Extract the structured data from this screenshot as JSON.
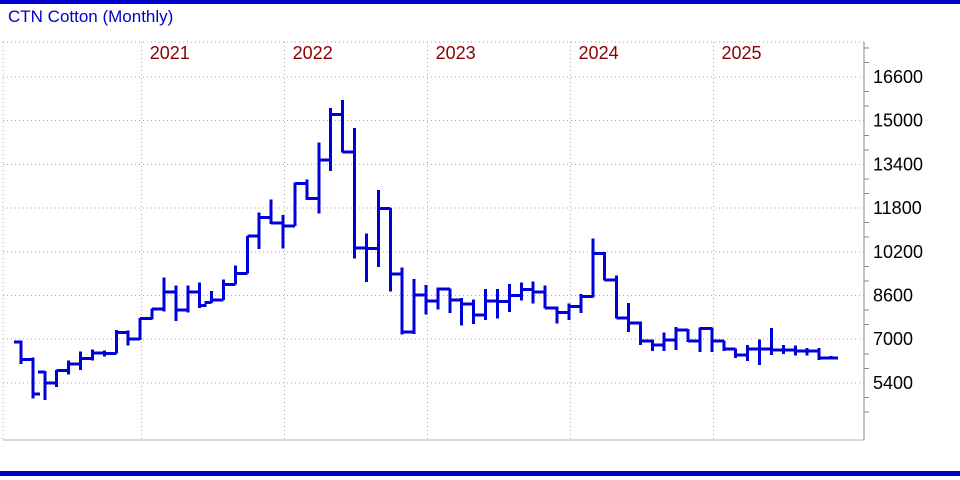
{
  "page": {
    "title": "CTN Cotton (Monthly)"
  },
  "colors": {
    "accent_blue": "#0000cc",
    "bar_blue": "#0000d9",
    "year_label_red": "#8b0000",
    "grid_gray": "#aaaaaa",
    "axis_gray": "#888888",
    "axis_text": "#000000"
  },
  "chart_data": {
    "type": "bar",
    "subtype": "ohlc-bars",
    "title": "CTN Cotton (Monthly)",
    "grid": "dotted",
    "legend": "none",
    "y_axis_side": "right",
    "ylim": [
      3300,
      17900
    ],
    "y_tick_labels": [
      16600,
      15000,
      13400,
      11800,
      10200,
      8600,
      7000,
      5400
    ],
    "x_year_labels": [
      "2021",
      "2022",
      "2023",
      "2024",
      "2025"
    ],
    "bars_note": "each bar = [month, open, high, low, close], values estimated from gridlines",
    "bars": [
      [
        "2020-03",
        6900,
        6950,
        6100,
        6250
      ],
      [
        "2020-04",
        6250,
        6330,
        4830,
        5000
      ],
      [
        "2020-05",
        5800,
        5830,
        4780,
        5400
      ],
      [
        "2020-06",
        5400,
        5880,
        5250,
        5850
      ],
      [
        "2020-07",
        5850,
        6220,
        5700,
        6100
      ],
      [
        "2020-08",
        6100,
        6550,
        5880,
        6300
      ],
      [
        "2020-09",
        6300,
        6630,
        6220,
        6500
      ],
      [
        "2020-10",
        6500,
        6590,
        6370,
        6480
      ],
      [
        "2020-11",
        6480,
        7340,
        6480,
        7240
      ],
      [
        "2020-12",
        7240,
        7320,
        6770,
        7000
      ],
      [
        "2021-01",
        7000,
        7780,
        6970,
        7750
      ],
      [
        "2021-02",
        7750,
        8130,
        7720,
        8100
      ],
      [
        "2021-03",
        8100,
        9250,
        8010,
        8720
      ],
      [
        "2021-04",
        8720,
        8960,
        7660,
        8070
      ],
      [
        "2021-05",
        8070,
        8960,
        7970,
        8720
      ],
      [
        "2021-06",
        8720,
        9070,
        8150,
        8240
      ],
      [
        "2021-07",
        8350,
        8760,
        8330,
        8430
      ],
      [
        "2021-08",
        8430,
        9180,
        8430,
        9000
      ],
      [
        "2021-09",
        9000,
        9690,
        9000,
        9400
      ],
      [
        "2021-10",
        9400,
        10780,
        9400,
        10780
      ],
      [
        "2021-11",
        10780,
        11630,
        10300,
        11450
      ],
      [
        "2021-12",
        11450,
        12120,
        11210,
        11260
      ],
      [
        "2022-01",
        11260,
        11540,
        10320,
        11150
      ],
      [
        "2022-02",
        11150,
        12740,
        11150,
        12700
      ],
      [
        "2022-03",
        12700,
        12850,
        12090,
        12150
      ],
      [
        "2022-04",
        12150,
        14210,
        11610,
        13560
      ],
      [
        "2022-05",
        13560,
        15460,
        13160,
        15230
      ],
      [
        "2022-06",
        15230,
        15760,
        13840,
        13860
      ],
      [
        "2022-07",
        13860,
        14740,
        9960,
        10340
      ],
      [
        "2022-08",
        10340,
        10870,
        9100,
        10320
      ],
      [
        "2022-09",
        10320,
        12460,
        9650,
        11790
      ],
      [
        "2022-10",
        11790,
        11800,
        8750,
        9380
      ],
      [
        "2022-11",
        9380,
        9620,
        7170,
        7270
      ],
      [
        "2022-12",
        7270,
        9210,
        7190,
        8620
      ],
      [
        "2023-01",
        8620,
        8990,
        7900,
        8400
      ],
      [
        "2023-02",
        8400,
        8890,
        8080,
        8840
      ],
      [
        "2023-03",
        8840,
        8850,
        7960,
        8440
      ],
      [
        "2023-04",
        8440,
        8500,
        7510,
        8280
      ],
      [
        "2023-05",
        8280,
        8460,
        7550,
        7890
      ],
      [
        "2023-06",
        7890,
        8840,
        7710,
        8400
      ],
      [
        "2023-07",
        8400,
        8840,
        7760,
        8380
      ],
      [
        "2023-08",
        8380,
        9020,
        8000,
        8600
      ],
      [
        "2023-09",
        8600,
        9080,
        8420,
        8820
      ],
      [
        "2023-10",
        8820,
        9120,
        8300,
        8720
      ],
      [
        "2023-11",
        8720,
        8960,
        8120,
        8140
      ],
      [
        "2023-12",
        8140,
        8200,
        7580,
        7970
      ],
      [
        "2024-01",
        7970,
        8300,
        7700,
        8200
      ],
      [
        "2024-02",
        8200,
        8660,
        7960,
        8560
      ],
      [
        "2024-03",
        8560,
        10690,
        8520,
        10140
      ],
      [
        "2024-04",
        10140,
        10200,
        9150,
        9170
      ],
      [
        "2024-05",
        9170,
        9330,
        7760,
        7780
      ],
      [
        "2024-06",
        7780,
        8320,
        7260,
        7600
      ],
      [
        "2024-07",
        7600,
        7650,
        6780,
        6930
      ],
      [
        "2024-08",
        6930,
        6980,
        6570,
        6780
      ],
      [
        "2024-09",
        6780,
        7240,
        6570,
        6970
      ],
      [
        "2024-10",
        6970,
        7440,
        6610,
        7330
      ],
      [
        "2024-11",
        7330,
        7380,
        6890,
        6930
      ],
      [
        "2024-12",
        6930,
        7430,
        6530,
        7400
      ],
      [
        "2025-01",
        7400,
        7430,
        6540,
        6940
      ],
      [
        "2025-02",
        6940,
        6950,
        6570,
        6640
      ],
      [
        "2025-03",
        6640,
        6660,
        6320,
        6420
      ],
      [
        "2025-04",
        6420,
        6790,
        6200,
        6640
      ],
      [
        "2025-05",
        6640,
        6980,
        6050,
        6640
      ],
      [
        "2025-06",
        6640,
        7410,
        6420,
        6600
      ],
      [
        "2025-07",
        6600,
        6790,
        6450,
        6600
      ],
      [
        "2025-08",
        6600,
        6770,
        6400,
        6560
      ],
      [
        "2025-09",
        6560,
        6670,
        6400,
        6560
      ],
      [
        "2025-10",
        6560,
        6670,
        6240,
        6320
      ],
      [
        "2025-11",
        6320,
        6380,
        6260,
        6320
      ]
    ]
  }
}
